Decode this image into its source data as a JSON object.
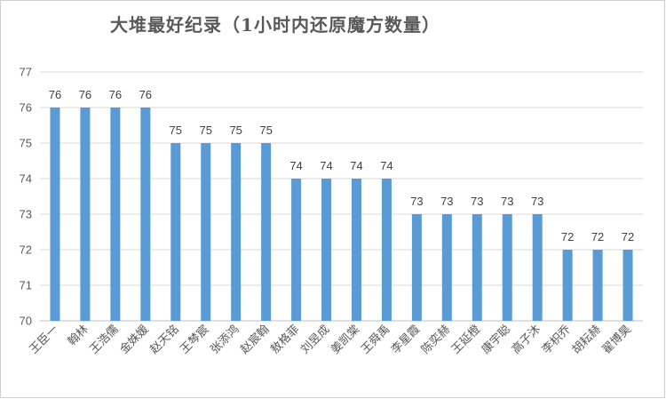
{
  "chart_data": {
    "type": "bar",
    "title": "大堆最好纪录（1小时内还原魔方数量）",
    "categories": [
      "王臣一",
      "翰林",
      "王浩儒",
      "金姝媛",
      "赵天铭",
      "王棽宸",
      "张添鸿",
      "赵宸翰",
      "敖格菲",
      "刘昱成",
      "姜凯棠",
      "王舜禹",
      "李星霞",
      "陈奕赫",
      "王延橙",
      "康宇聪",
      "高子沐",
      "李枳乔",
      "胡耘赫",
      "翟博昊"
    ],
    "values": [
      76,
      76,
      76,
      76,
      75,
      75,
      75,
      75,
      74,
      74,
      74,
      74,
      73,
      73,
      73,
      73,
      73,
      72,
      72,
      72
    ],
    "ylim": [
      70,
      77
    ],
    "yticks": [
      70,
      71,
      72,
      73,
      74,
      75,
      76,
      77
    ],
    "grid": true,
    "legend": "none",
    "bar_color": "#5b9bd5"
  }
}
